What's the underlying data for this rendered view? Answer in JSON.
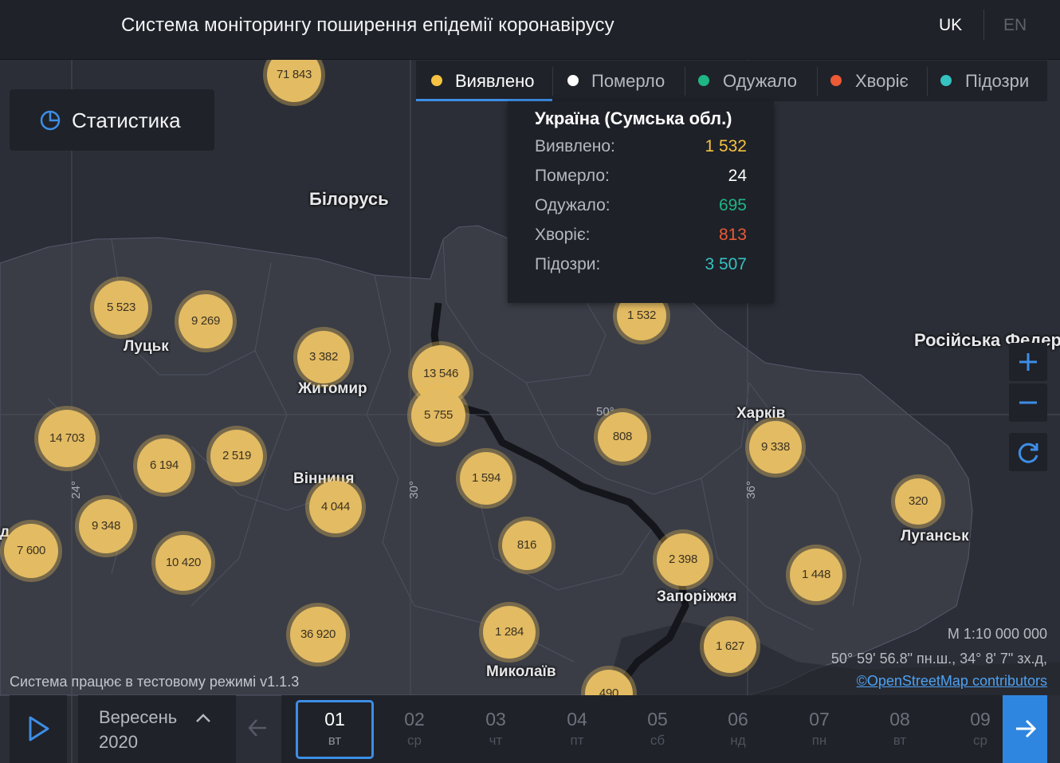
{
  "header": {
    "title": "Система моніторингу поширення епідемії коронавірусу",
    "lang_uk": "UK",
    "lang_en": "EN"
  },
  "stats_button": {
    "label": "Статистика",
    "icon": "pie-chart-icon"
  },
  "tabs": [
    {
      "label": "Виявлено",
      "color": "#f5c242"
    },
    {
      "label": "Померло",
      "color": "#ffffff"
    },
    {
      "label": "Одужало",
      "color": "#1fb585"
    },
    {
      "label": "Хворіє",
      "color": "#ec5a36"
    },
    {
      "label": "Підозри",
      "color": "#35c2c0"
    }
  ],
  "tooltip": {
    "title": "Україна (Сумська обл.)",
    "rows": [
      {
        "label": "Виявлено:",
        "value": "1 532",
        "color": "#f5c242"
      },
      {
        "label": "Померло:",
        "value": "24",
        "color": "#ffffff"
      },
      {
        "label": "Одужало:",
        "value": "695",
        "color": "#1fb585"
      },
      {
        "label": "Хворіє:",
        "value": "813",
        "color": "#ec5a36"
      },
      {
        "label": "Підозри:",
        "value": "3 507",
        "color": "#35c2c0"
      }
    ]
  },
  "map_labels": {
    "belarus": "Білорусь",
    "russia": "Російська Федер",
    "lutsk": "Луцьк",
    "zhytomyr": "Житомир",
    "vinnytsia": "Вінниця",
    "kharkiv": "Харків",
    "luhansk": "Луганськ",
    "zaporizhzhia": "Запоріжжя",
    "mykolaiv": "Миколаїв",
    "edge_left": "д"
  },
  "graticule": {
    "lat50": "50°",
    "lon24": "24°",
    "lon30": "30°",
    "lon36": "36°"
  },
  "clusters": [
    {
      "label": "71 843"
    },
    {
      "label": "5 523"
    },
    {
      "label": "9 269"
    },
    {
      "label": "3 382"
    },
    {
      "label": "13 546"
    },
    {
      "label": "5 755"
    },
    {
      "label": "1 532"
    },
    {
      "label": "808"
    },
    {
      "label": "9 338"
    },
    {
      "label": "14 703"
    },
    {
      "label": "6 194"
    },
    {
      "label": "2 519"
    },
    {
      "label": "4 044"
    },
    {
      "label": "1 594"
    },
    {
      "label": "320"
    },
    {
      "label": "9 348"
    },
    {
      "label": "7 600"
    },
    {
      "label": "10 420"
    },
    {
      "label": "816"
    },
    {
      "label": "2 398"
    },
    {
      "label": "1 448"
    },
    {
      "label": "36 920"
    },
    {
      "label": "1 284"
    },
    {
      "label": "1 627"
    },
    {
      "label": "490"
    }
  ],
  "controls": {
    "zoom_in": "zoom-in-icon",
    "zoom_out": "zoom-out-icon",
    "reset": "refresh-icon"
  },
  "scale": "M 1:10 000 000",
  "coords": "50° 59' 56.8\" пн.ш., 34° 8' 7\" зх.д,",
  "attribution": "©OpenStreetMap contributors",
  "version_note": "Система працює в тестовому режимі v1.1.3",
  "timeline": {
    "month": "Вересень",
    "year": "2020",
    "days": [
      {
        "n": "01",
        "w": "вт",
        "active": true
      },
      {
        "n": "02",
        "w": "ср"
      },
      {
        "n": "03",
        "w": "чт"
      },
      {
        "n": "04",
        "w": "пт"
      },
      {
        "n": "05",
        "w": "сб"
      },
      {
        "n": "06",
        "w": "нд"
      },
      {
        "n": "07",
        "w": "пн"
      },
      {
        "n": "08",
        "w": "вт"
      },
      {
        "n": "09",
        "w": "ср"
      }
    ]
  }
}
